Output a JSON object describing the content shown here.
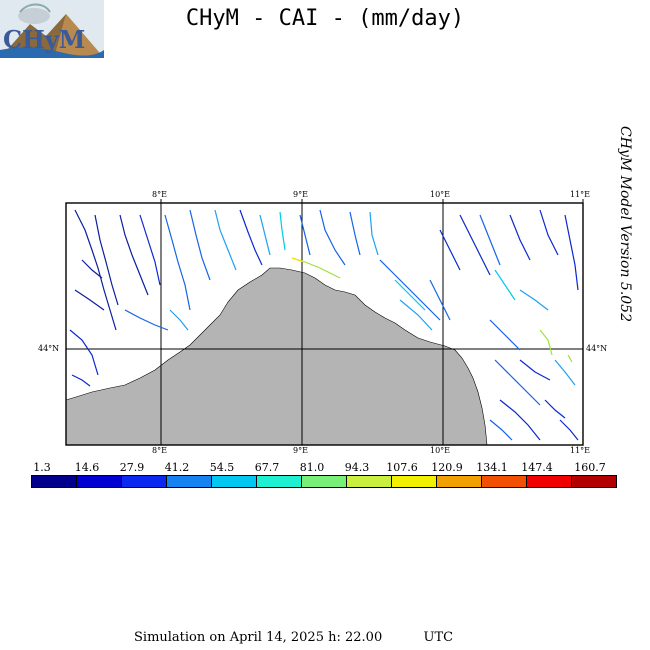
{
  "header": {
    "title": "CHyM - CAI - (mm/day)",
    "logo_text": "CHyM"
  },
  "side_label": "CHyM Model Version 5.052",
  "map": {
    "lon_ticks_top": [
      "8°E",
      "9°E",
      "10°E",
      "11°E"
    ],
    "lon_ticks_bottom": [
      "8°E",
      "9°E",
      "10°E",
      "11°E"
    ],
    "lat_tick_left": "44°N",
    "lat_tick_right": "44°N",
    "land_color": "#ffffff",
    "sea_color": "#b4b4b4"
  },
  "colorbar": {
    "labels": [
      "1.3",
      "14.6",
      "27.9",
      "41.2",
      "54.5",
      "67.7",
      "81.0",
      "94.3",
      "107.6",
      "120.9",
      "134.1",
      "147.4",
      "160.7"
    ],
    "colors": [
      "#00008c",
      "#0000d2",
      "#0a28f0",
      "#1482f0",
      "#00c8f0",
      "#1ef0d2",
      "#78f078",
      "#c8f03c",
      "#f0f000",
      "#f0a000",
      "#f05000",
      "#f00000",
      "#b40000"
    ]
  },
  "footer": {
    "simulation": "Simulation on April 14, 2025 h: 22.00",
    "timezone": "UTC"
  }
}
